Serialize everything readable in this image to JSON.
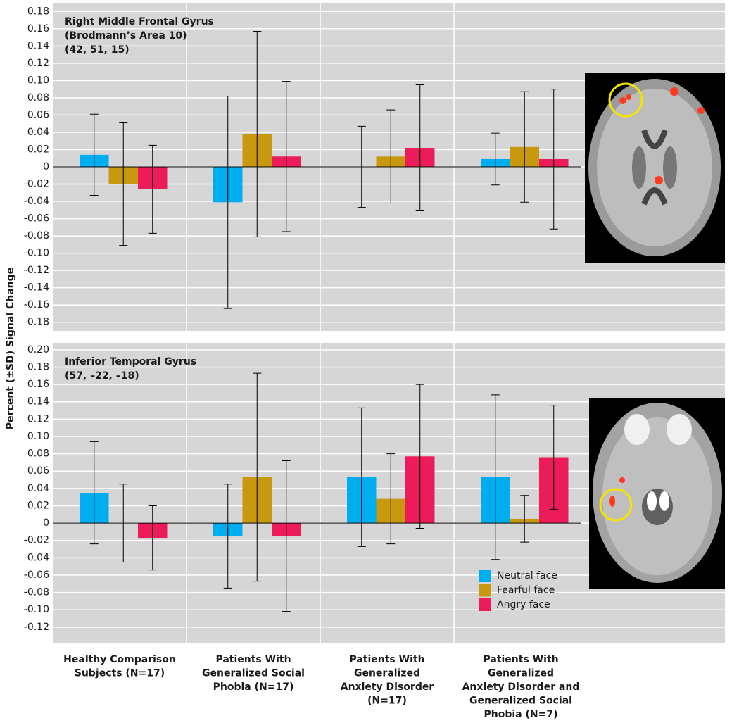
{
  "chart_data": [
    {
      "type": "bar",
      "annotation": [
        "Right Middle Frontal Gyrus",
        "(Brodmann’s Area 10)",
        "(42, 51, 15)"
      ],
      "ylabel": "Percent (±SD) Signal Change",
      "categories": [
        null,
        null,
        null,
        null
      ],
      "series": [
        {
          "color": "#00aeef",
          "values": [
            0.014,
            -0.041,
            0,
            0.009
          ],
          "errors": [
            0.047,
            0.123,
            0.047,
            0.03
          ]
        },
        {
          "color": "#c8980f",
          "values": [
            -0.02,
            0.038,
            0.012,
            0.023
          ],
          "errors": [
            0.071,
            0.119,
            0.054,
            0.064
          ]
        },
        {
          "color": "#ec1c5a",
          "values": [
            -0.026,
            0.012,
            0.022,
            0.009
          ],
          "errors": [
            0.051,
            0.087,
            0.073,
            0.081
          ]
        }
      ],
      "ylim": [
        -0.19,
        0.19
      ],
      "yticks": [
        0.18,
        0.16,
        0.14,
        0.12,
        {
          "value": 0.1,
          "label": "0.10"
        },
        0.08,
        0.06,
        0.04,
        0.02,
        0,
        -0.02,
        -0.04,
        -0.06,
        -0.08,
        {
          "value": -0.1,
          "label": "-0.10"
        },
        -0.12,
        -0.14,
        -0.16,
        -0.18
      ],
      "grid": true
    },
    {
      "type": "bar",
      "annotation": [
        "Inferior Temporal Gyrus",
        "(57, –22, –18)"
      ],
      "categories": [
        [
          "Healthy Comparison",
          "Subjects (N=17)"
        ],
        [
          "Patients With",
          "Generalized Social",
          "Phobia (N=17)"
        ],
        [
          "Patients With",
          "Generalized",
          "Anxiety Disorder",
          "(N=17)"
        ],
        [
          "Patients With",
          "Generalized",
          "Anxiety Disorder and",
          "Generalized Social",
          "Phobia (N=7)"
        ]
      ],
      "series": [
        {
          "name": "Neutral face",
          "color": "#00aeef",
          "values": [
            0.035,
            -0.015,
            0.053,
            0.053
          ],
          "errors": [
            0.059,
            0.06,
            0.08,
            0.095
          ]
        },
        {
          "name": "Fearful face",
          "color": "#c8980f",
          "values": [
            0,
            0.053,
            0.028,
            0.005
          ],
          "errors": [
            0.045,
            0.12,
            0.052,
            0.027
          ]
        },
        {
          "name": "Angry face",
          "color": "#ec1c5a",
          "values": [
            -0.017,
            -0.015,
            0.077,
            0.076
          ],
          "errors": [
            0.037,
            0.087,
            0.083,
            0.06
          ]
        }
      ],
      "ylim": [
        -0.138,
        0.208
      ],
      "yticks": [
        {
          "value": 0.2,
          "label": "0.20"
        },
        0.18,
        0.16,
        0.14,
        0.12,
        {
          "value": 0.1,
          "label": "0.10"
        },
        0.08,
        0.06,
        0.04,
        0.02,
        0,
        -0.02,
        -0.04,
        -0.06,
        -0.08,
        {
          "value": -0.1,
          "label": "-0.10"
        },
        -0.12
      ],
      "grid": true
    }
  ]
}
